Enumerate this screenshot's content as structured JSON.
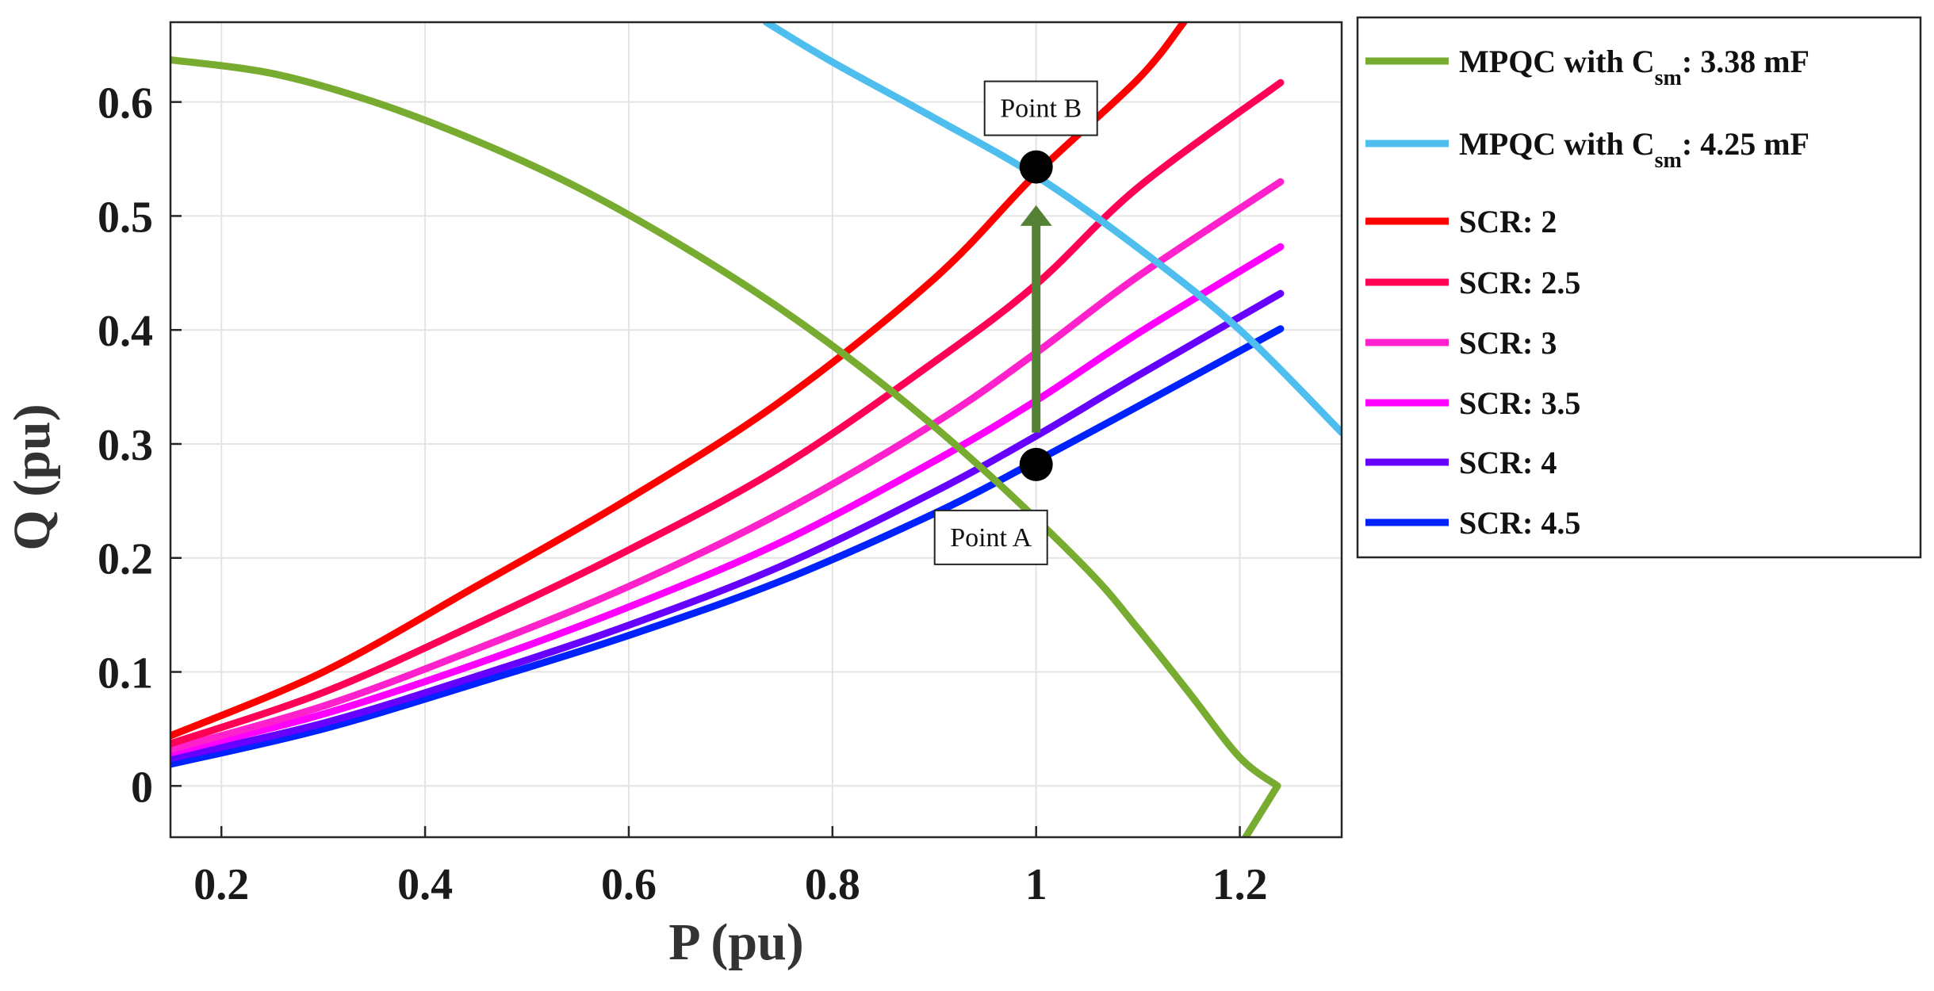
{
  "chart_data": {
    "type": "line",
    "xlabel": "P (pu)",
    "ylabel": "Q (pu)",
    "xlim": [
      0.15,
      1.3
    ],
    "ylim": [
      -0.045,
      0.67
    ],
    "grid": true,
    "legend_position": "outside-right",
    "xticks": [
      {
        "value": 0.2,
        "label": "0.2"
      },
      {
        "value": 0.4,
        "label": "0.4"
      },
      {
        "value": 0.6,
        "label": "0.6"
      },
      {
        "value": 0.8,
        "label": "0.8"
      },
      {
        "value": 1.0,
        "label": "1"
      },
      {
        "value": 1.2,
        "label": "1.2"
      }
    ],
    "yticks": [
      {
        "value": 0.0,
        "label": "0"
      },
      {
        "value": 0.1,
        "label": "0.1"
      },
      {
        "value": 0.2,
        "label": "0.2"
      },
      {
        "value": 0.3,
        "label": "0.3"
      },
      {
        "value": 0.4,
        "label": "0.4"
      },
      {
        "value": 0.5,
        "label": "0.5"
      },
      {
        "value": 0.6,
        "label": "0.6"
      }
    ],
    "series": [
      {
        "name": "MPQC with Csm: 3.38 mF",
        "label_main": "MPQC with C",
        "label_sub": "sm",
        "label_tail": ": 3.38 mF",
        "color": "#77ac30",
        "x": [
          0.15,
          0.25,
          0.35,
          0.45,
          0.55,
          0.65,
          0.75,
          0.85,
          0.95,
          1.05,
          1.1,
          1.15,
          1.2,
          1.237,
          1.205
        ],
        "y": [
          0.637,
          0.625,
          0.6,
          0.566,
          0.525,
          0.475,
          0.418,
          0.352,
          0.276,
          0.19,
          0.138,
          0.082,
          0.025,
          0.0,
          -0.046
        ]
      },
      {
        "name": "MPQC with Csm: 4.25 mF",
        "label_main": "MPQC with C",
        "label_sub": "sm",
        "label_tail": ": 4.25 mF",
        "color": "#4dbeee",
        "x": [
          0.735,
          0.8,
          0.9,
          1.0,
          1.1,
          1.2,
          1.3
        ],
        "y": [
          0.67,
          0.635,
          0.586,
          0.535,
          0.472,
          0.4,
          0.31
        ]
      },
      {
        "name": "SCR: 2",
        "label_main": "SCR: 2",
        "color": "#ff0000",
        "x": [
          0.15,
          0.3,
          0.45,
          0.6,
          0.75,
          0.9,
          1.0,
          1.1,
          1.145
        ],
        "y": [
          0.044,
          0.1,
          0.175,
          0.252,
          0.338,
          0.445,
          0.537,
          0.62,
          0.67
        ]
      },
      {
        "name": "SCR: 2.5",
        "label_main": "SCR: 2.5",
        "color": "#ff0055",
        "x": [
          0.15,
          0.3,
          0.45,
          0.6,
          0.75,
          0.9,
          1.0,
          1.1,
          1.24
        ],
        "y": [
          0.037,
          0.082,
          0.142,
          0.207,
          0.28,
          0.372,
          0.44,
          0.525,
          0.617
        ]
      },
      {
        "name": "SCR: 3",
        "label_main": "SCR: 3",
        "color": "#ff22cc",
        "x": [
          0.15,
          0.3,
          0.45,
          0.6,
          0.75,
          0.9,
          1.0,
          1.1,
          1.24
        ],
        "y": [
          0.032,
          0.07,
          0.12,
          0.175,
          0.24,
          0.318,
          0.38,
          0.447,
          0.53
        ]
      },
      {
        "name": "SCR: 3.5",
        "label_main": "SCR: 3.5",
        "color": "#ff00ff",
        "x": [
          0.15,
          0.3,
          0.45,
          0.6,
          0.75,
          0.9,
          1.0,
          1.1,
          1.24
        ],
        "y": [
          0.029,
          0.063,
          0.107,
          0.157,
          0.214,
          0.285,
          0.338,
          0.397,
          0.473
        ]
      },
      {
        "name": "SCR: 4",
        "label_main": "SCR: 4",
        "color": "#6600ff",
        "x": [
          0.15,
          0.3,
          0.45,
          0.6,
          0.75,
          0.9,
          1.0,
          1.1,
          1.24
        ],
        "y": [
          0.024,
          0.055,
          0.096,
          0.141,
          0.193,
          0.258,
          0.307,
          0.36,
          0.432
        ]
      },
      {
        "name": "SCR: 4.5",
        "label_main": "SCR: 4.5",
        "color": "#0022ff",
        "x": [
          0.15,
          0.3,
          0.45,
          0.6,
          0.75,
          0.9,
          1.0,
          1.1,
          1.24
        ],
        "y": [
          0.019,
          0.05,
          0.09,
          0.132,
          0.18,
          0.239,
          0.285,
          0.333,
          0.401
        ]
      }
    ],
    "points": [
      {
        "name": "Point A",
        "label": "Point A",
        "x": 1.0,
        "y": 0.282,
        "label_side": "below"
      },
      {
        "name": "Point B",
        "label": "Point B",
        "x": 1.0,
        "y": 0.543,
        "label_side": "above"
      }
    ],
    "arrow": {
      "x": 1.0,
      "from_y": 0.31,
      "to_y": 0.508,
      "color": "#548235"
    }
  }
}
